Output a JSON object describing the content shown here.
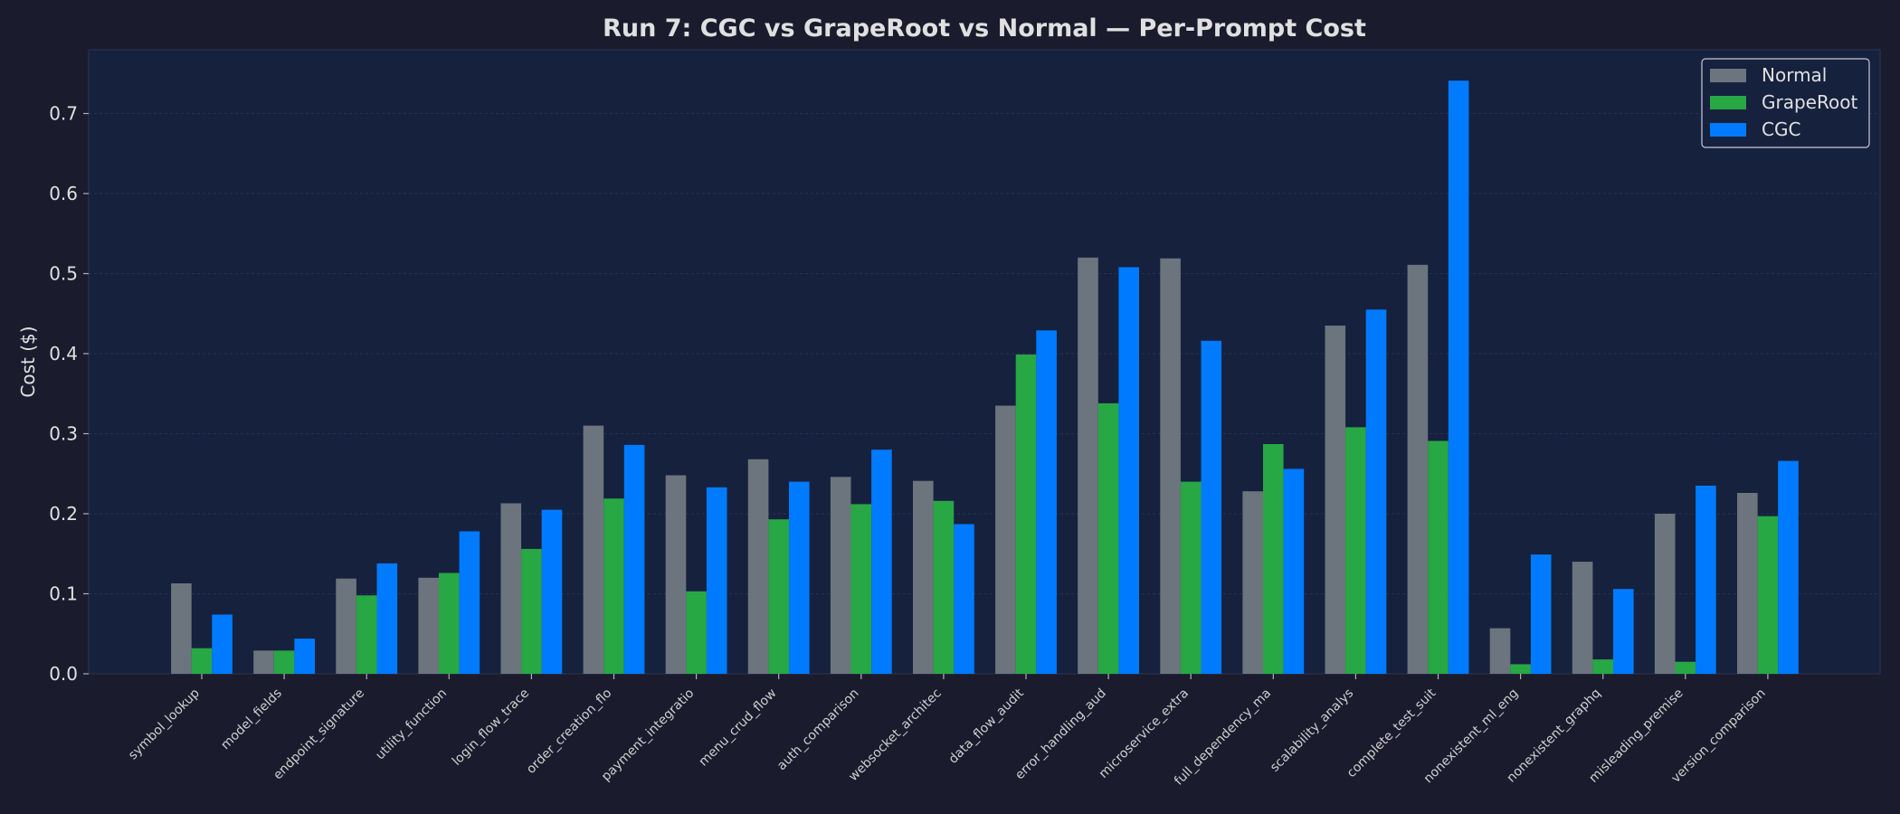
{
  "chart_data": {
    "type": "bar",
    "title": "Run 7: CGC vs GrapeRoot vs Normal — Per-Prompt Cost",
    "xlabel": "",
    "ylabel": "Cost ($)",
    "ylim": [
      0,
      0.78
    ],
    "yticks": [
      0.0,
      0.1,
      0.2,
      0.3,
      0.4,
      0.5,
      0.6,
      0.7
    ],
    "ytick_labels": [
      "0.0",
      "0.1",
      "0.2",
      "0.3",
      "0.4",
      "0.5",
      "0.6",
      "0.7"
    ],
    "grid": true,
    "legend_position": "top-right",
    "categories": [
      "symbol_lookup",
      "model_fields",
      "endpoint_signature",
      "utility_function",
      "login_flow_trace",
      "order_creation_flo",
      "payment_integratio",
      "menu_crud_flow",
      "auth_comparison",
      "websocket_architec",
      "data_flow_audit",
      "error_handling_aud",
      "microservice_extra",
      "full_dependency_ma",
      "scalability_analys",
      "complete_test_suit",
      "nonexistent_ml_eng",
      "nonexistent_graphq",
      "misleading_premise",
      "version_comparison"
    ],
    "series": [
      {
        "name": "Normal",
        "color": "#6c757d",
        "values": [
          0.113,
          0.029,
          0.119,
          0.12,
          0.213,
          0.31,
          0.248,
          0.268,
          0.246,
          0.241,
          0.335,
          0.52,
          0.519,
          0.228,
          0.435,
          0.511,
          0.057,
          0.14,
          0.2,
          0.226
        ]
      },
      {
        "name": "GrapeRoot",
        "color": "#28a745",
        "values": [
          0.032,
          0.029,
          0.098,
          0.126,
          0.156,
          0.219,
          0.103,
          0.193,
          0.212,
          0.216,
          0.399,
          0.338,
          0.24,
          0.287,
          0.308,
          0.291,
          0.012,
          0.018,
          0.015,
          0.197
        ]
      },
      {
        "name": "CGC",
        "color": "#007bff",
        "values": [
          0.074,
          0.044,
          0.138,
          0.178,
          0.205,
          0.286,
          0.233,
          0.24,
          0.28,
          0.187,
          0.429,
          0.508,
          0.416,
          0.256,
          0.455,
          0.741,
          0.149,
          0.106,
          0.235,
          0.266
        ]
      }
    ]
  }
}
